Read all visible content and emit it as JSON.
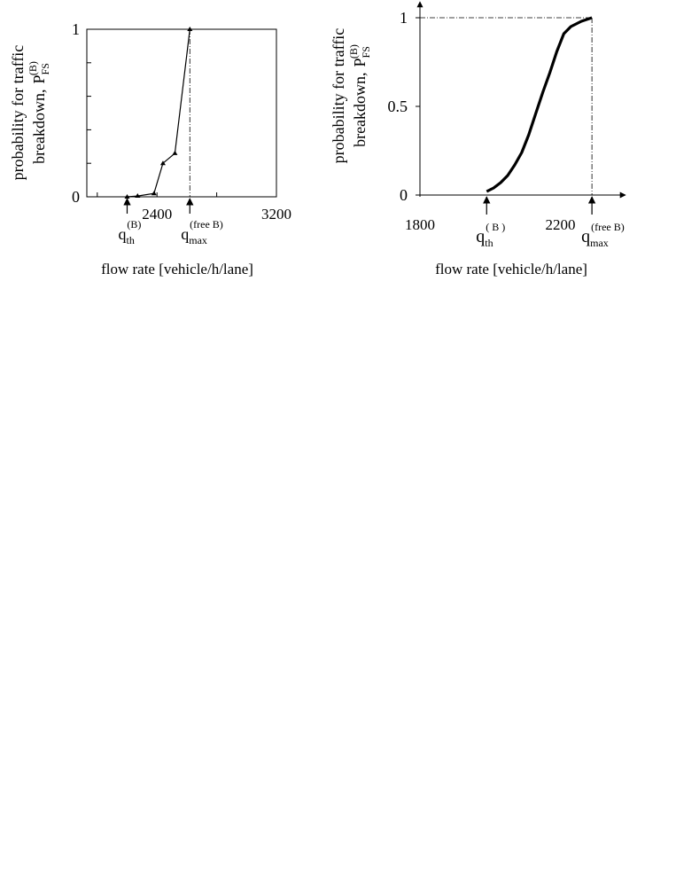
{
  "chart_data": [
    {
      "type": "line",
      "ylabel_line1": "probability for traffic",
      "ylabel_line2": "breakdown,",
      "ylabel_symbol": "P",
      "ylabel_sub": "FS",
      "ylabel_sup": "(B)",
      "xlabel": "flow rate [vehicle/h/lane]",
      "xlim": [
        1930,
        3200
      ],
      "ylim": [
        0,
        1
      ],
      "x_ticks": [
        2400,
        3200
      ],
      "y_ticks": [
        0,
        1
      ],
      "y_minor_ticks": [
        0.2,
        0.4,
        0.6,
        0.8
      ],
      "series": [
        {
          "x": [
            2200,
            2270,
            2380,
            2440,
            2520,
            2620
          ],
          "y": [
            0.0,
            0.005,
            0.02,
            0.2,
            0.26,
            1.0
          ]
        }
      ],
      "markers": [
        {
          "x": 2200,
          "symbol": "q",
          "sub": "th",
          "sup": "(B)"
        },
        {
          "x": 2620,
          "symbol": "q",
          "sub": "max",
          "sup": "(free B)"
        }
      ],
      "grid": false
    },
    {
      "type": "line",
      "ylabel_line1": "probability for traffic",
      "ylabel_line2": "breakdown,",
      "ylabel_symbol": "P",
      "ylabel_sub": "FS",
      "ylabel_sup": "(B)",
      "xlabel": "flow rate [vehicle/h/lane]",
      "xlim": [
        1800,
        2320
      ],
      "ylim": [
        0,
        1
      ],
      "x_ticks": [
        1800,
        2200
      ],
      "y_ticks": [
        0,
        0.5,
        1
      ],
      "series": [
        {
          "x": [
            1990,
            2010,
            2030,
            2050,
            2070,
            2090,
            2110,
            2130,
            2150,
            2170,
            2190,
            2210,
            2230,
            2260,
            2290
          ],
          "y": [
            0.02,
            0.04,
            0.07,
            0.11,
            0.17,
            0.24,
            0.34,
            0.46,
            0.58,
            0.69,
            0.81,
            0.91,
            0.95,
            0.98,
            1.0
          ]
        }
      ],
      "markers": [
        {
          "x": 1990,
          "symbol": "q",
          "sub": "th",
          "sup": "( B )"
        },
        {
          "x": 2290,
          "symbol": "q",
          "sub": "max",
          "sup": "(free B)"
        }
      ],
      "grid": false
    }
  ]
}
